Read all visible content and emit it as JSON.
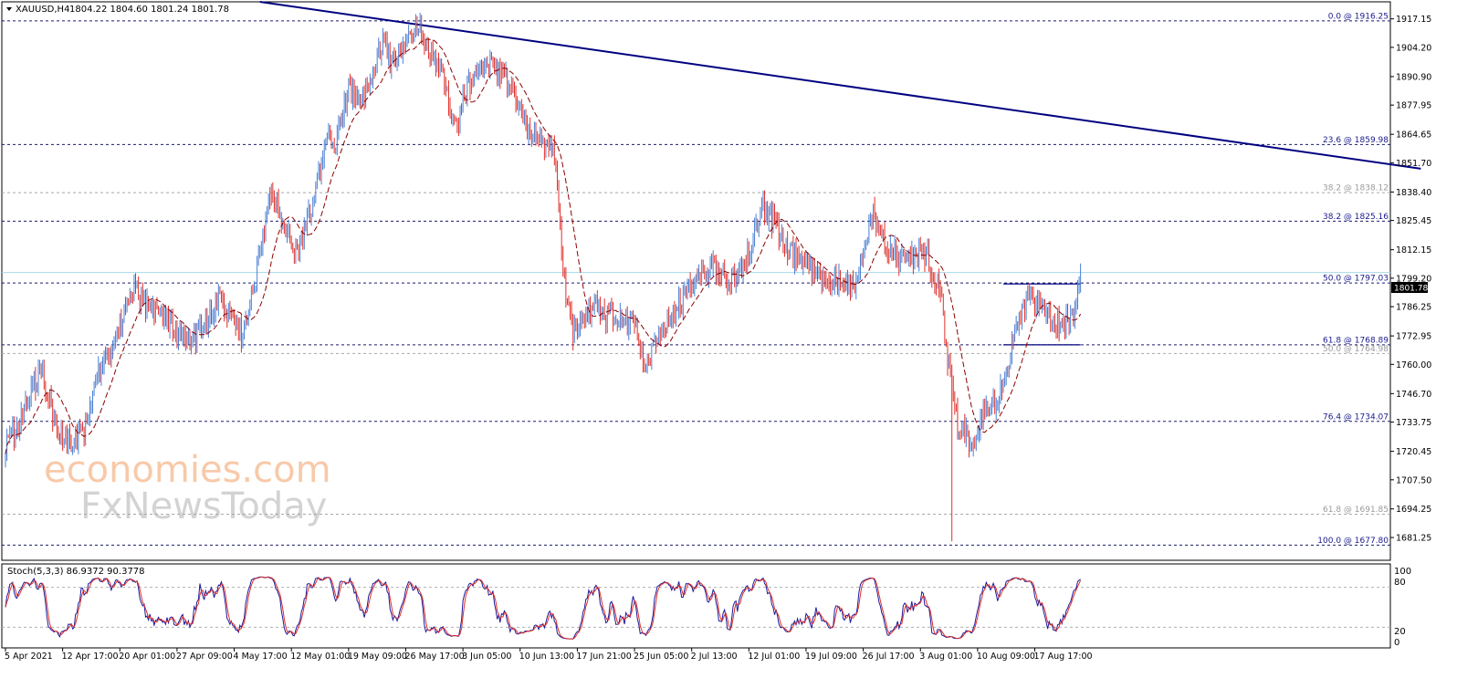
{
  "header": {
    "symbol": "XAUUSD,H4",
    "ohlc": "1804.22 1804.60 1801.24 1801.78"
  },
  "price_tag": "1801.78",
  "watermark": {
    "line1": "economies.com",
    "line2": "FxNewsToday"
  },
  "stoch": {
    "label": "Stoch(5,3,3) 86.9372 90.3778",
    "levels": [
      "100",
      "80",
      "20",
      "0"
    ]
  },
  "colors": {
    "up": "#4a7fd4",
    "down": "#e0302a",
    "trend": "#000080",
    "ma": "#8b0000"
  },
  "chart_data": {
    "type": "candlestick",
    "ylim": [
      1670.9,
      1924.9
    ],
    "y_ticks": [
      1917.15,
      1904.2,
      1890.9,
      1877.95,
      1864.65,
      1851.7,
      1838.4,
      1825.45,
      1812.15,
      1799.2,
      1786.25,
      1772.95,
      1760.0,
      1746.7,
      1733.75,
      1720.45,
      1707.5,
      1694.25,
      1681.25
    ],
    "y_tick_labels": [
      "1917.15",
      "1904.20",
      "1890.90",
      "1877.95",
      "1864.65",
      "1851.70",
      "1838.40",
      "1825.45",
      "1812.15",
      "1799.20",
      "1786.25",
      "1772.95",
      "1760.00",
      "1746.70",
      "1733.75",
      "1720.45",
      "1707.50",
      "1694.25",
      "1681.25"
    ],
    "x_labels": [
      "5 Apr 2021",
      "12 Apr 17:00",
      "20 Apr 01:00",
      "27 Apr 09:00",
      "4 May 17:00",
      "12 May 01:00",
      "19 May 09:00",
      "26 May 17:00",
      "3 Jun 05:00",
      "10 Jun 13:00",
      "17 Jun 21:00",
      "25 Jun 05:00",
      "2 Jul 13:00",
      "12 Jul 01:00",
      "19 Jul 09:00",
      "26 Jul 17:00",
      "3 Aug 01:00",
      "10 Aug 09:00",
      "17 Aug 17:00"
    ],
    "x_label_index": [
      0,
      40,
      80,
      120,
      160,
      200,
      240,
      280,
      320,
      360,
      400,
      440,
      480,
      520,
      560,
      600,
      640,
      680,
      720
    ],
    "anchors": [
      [
        0,
        1722
      ],
      [
        12,
        1738
      ],
      [
        25,
        1758
      ],
      [
        35,
        1732
      ],
      [
        45,
        1725
      ],
      [
        55,
        1728
      ],
      [
        65,
        1755
      ],
      [
        75,
        1768
      ],
      [
        90,
        1795
      ],
      [
        100,
        1785
      ],
      [
        110,
        1780
      ],
      [
        120,
        1775
      ],
      [
        130,
        1770
      ],
      [
        140,
        1778
      ],
      [
        150,
        1790
      ],
      [
        160,
        1780
      ],
      [
        165,
        1772
      ],
      [
        175,
        1800
      ],
      [
        185,
        1838
      ],
      [
        195,
        1825
      ],
      [
        205,
        1810
      ],
      [
        215,
        1835
      ],
      [
        225,
        1864
      ],
      [
        230,
        1858
      ],
      [
        240,
        1885
      ],
      [
        250,
        1880
      ],
      [
        260,
        1900
      ],
      [
        265,
        1908
      ],
      [
        270,
        1895
      ],
      [
        280,
        1908
      ],
      [
        290,
        1915
      ],
      [
        297,
        1903
      ],
      [
        303,
        1897
      ],
      [
        310,
        1880
      ],
      [
        316,
        1866
      ],
      [
        320,
        1882
      ],
      [
        330,
        1893
      ],
      [
        340,
        1896
      ],
      [
        348,
        1892
      ],
      [
        355,
        1885
      ],
      [
        362,
        1870
      ],
      [
        372,
        1860
      ],
      [
        380,
        1858
      ],
      [
        385,
        1855
      ],
      [
        390,
        1800
      ],
      [
        397,
        1775
      ],
      [
        404,
        1780
      ],
      [
        412,
        1788
      ],
      [
        420,
        1782
      ],
      [
        430,
        1783
      ],
      [
        440,
        1777
      ],
      [
        448,
        1760
      ],
      [
        455,
        1768
      ],
      [
        465,
        1782
      ],
      [
        475,
        1790
      ],
      [
        485,
        1800
      ],
      [
        495,
        1805
      ],
      [
        505,
        1798
      ],
      [
        515,
        1802
      ],
      [
        523,
        1818
      ],
      [
        530,
        1833
      ],
      [
        537,
        1825
      ],
      [
        545,
        1812
      ],
      [
        555,
        1808
      ],
      [
        565,
        1802
      ],
      [
        575,
        1798
      ],
      [
        585,
        1800
      ],
      [
        593,
        1795
      ],
      [
        600,
        1808
      ],
      [
        606,
        1830
      ],
      [
        612,
        1820
      ],
      [
        620,
        1810
      ],
      [
        630,
        1808
      ],
      [
        638,
        1810
      ],
      [
        645,
        1808
      ],
      [
        650,
        1800
      ],
      [
        655,
        1790
      ],
      [
        658,
        1765
      ],
      [
        662,
        1750
      ],
      [
        666,
        1732
      ],
      [
        672,
        1728
      ],
      [
        678,
        1722
      ],
      [
        684,
        1735
      ],
      [
        690,
        1742
      ],
      [
        696,
        1748
      ],
      [
        702,
        1760
      ],
      [
        707,
        1778
      ],
      [
        712,
        1786
      ],
      [
        718,
        1790
      ],
      [
        724,
        1788
      ],
      [
        730,
        1782
      ],
      [
        736,
        1778
      ],
      [
        742,
        1780
      ],
      [
        746,
        1782
      ],
      [
        750,
        1795
      ],
      [
        752,
        1802
      ]
    ],
    "stoch_levels": [
      20,
      80
    ],
    "fibonacci": [
      {
        "label": "0.0 @ 1916.25",
        "price": 1916.25,
        "style": "dark"
      },
      {
        "label": "23.6 @ 1859.98",
        "price": 1859.98,
        "style": "dark"
      },
      {
        "label": "38.2 @ 1838.12",
        "price": 1838.12,
        "style": "grey"
      },
      {
        "label": "38.2 @ 1825.16",
        "price": 1825.16,
        "style": "dark"
      },
      {
        "label": "50.0 @ 1797.03",
        "price": 1797.03,
        "style": "dark"
      },
      {
        "label": "61.8 @ 1768.89",
        "price": 1768.89,
        "style": "dark"
      },
      {
        "label": "50.0 @ 1764.98",
        "price": 1764.98,
        "style": "grey"
      },
      {
        "label": "76.4 @ 1734.07",
        "price": 1734.07,
        "style": "dark"
      },
      {
        "label": "61.8 @ 1691.85",
        "price": 1691.85,
        "style": "grey"
      },
      {
        "label": "100.0 @ 1677.80",
        "price": 1677.8,
        "style": "dark"
      }
    ],
    "last_price": 1801.78,
    "trendline": [
      [
        178,
        1924.9
      ],
      [
        990,
        1849
      ]
    ],
    "support_lines": [
      {
        "from": 698,
        "to": 752,
        "price": 1796.6
      },
      {
        "from": 698,
        "to": 752,
        "price": 1768.89
      }
    ],
    "spike": {
      "index": 662,
      "low": 1679.5
    }
  }
}
